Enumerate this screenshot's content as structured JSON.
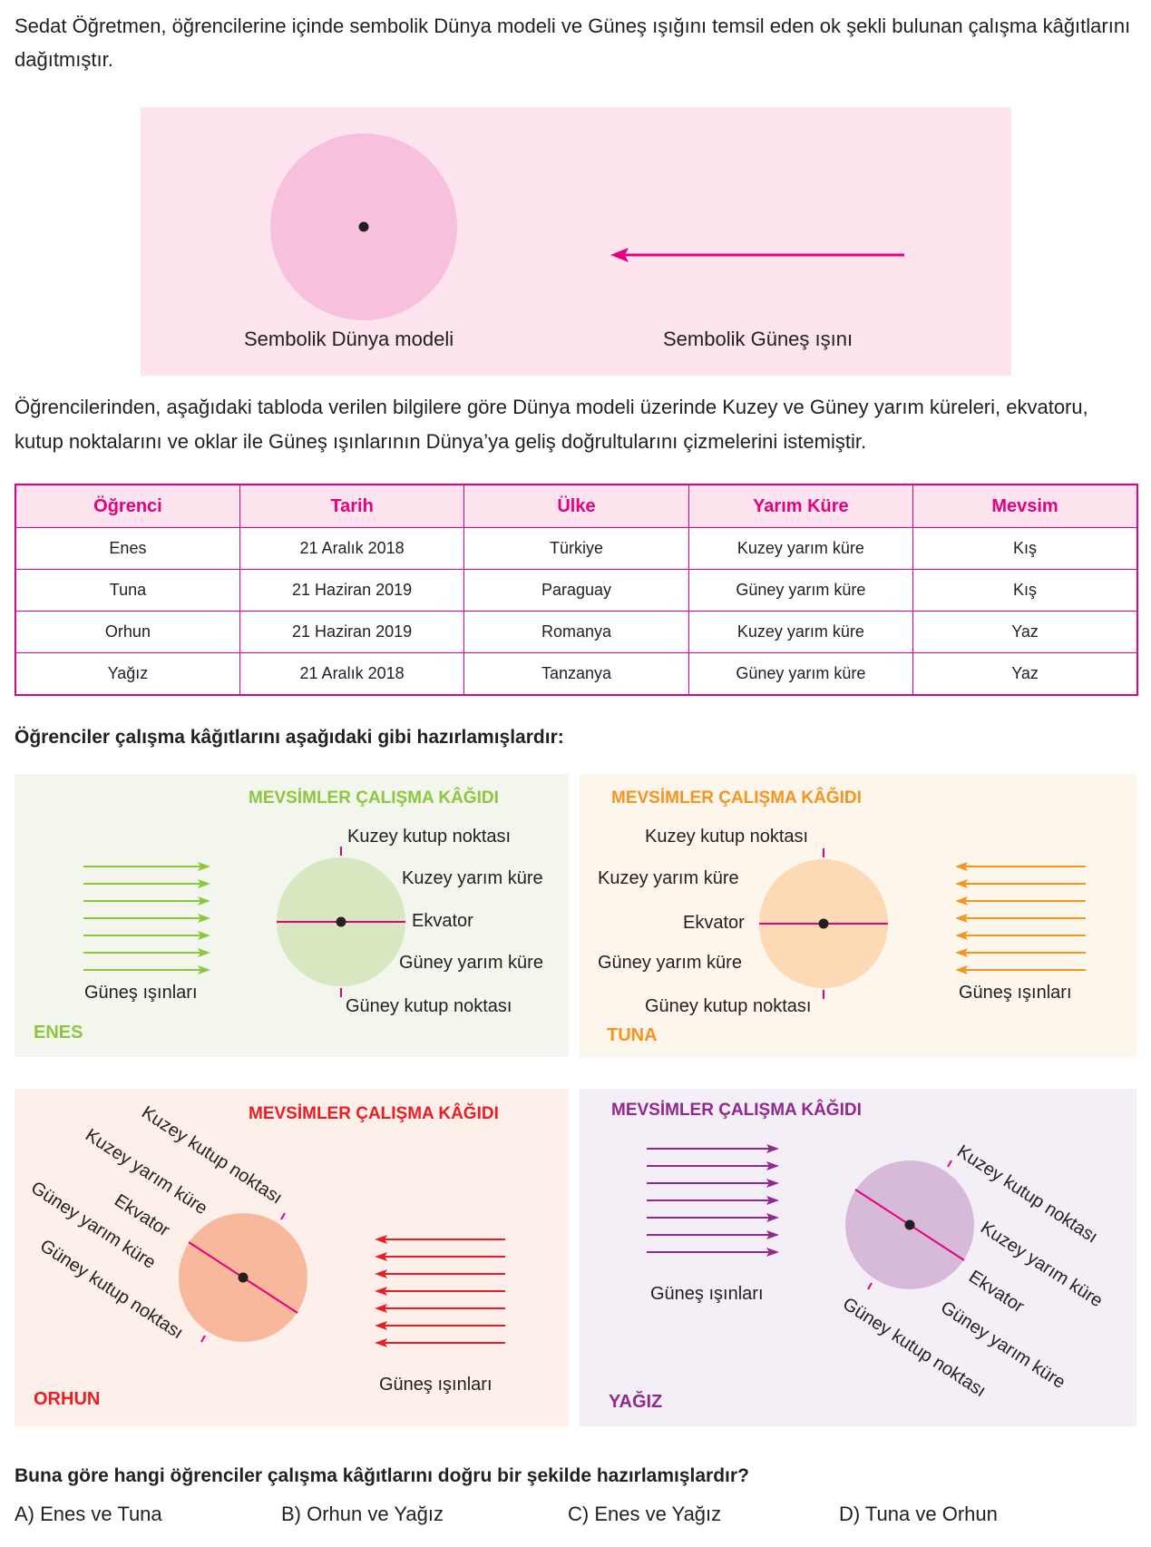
{
  "intro_text": "Sedat Öğretmen, öğrencilerine içinde sembolik Dünya modeli ve Güneş ışığını temsil eden ok şekli bulunan çalışma kâğıtlarını dağıtmıştır.",
  "model": {
    "earth_caption": "Sembolik Dünya modeli",
    "ray_caption": "Sembolik Güneş ışını"
  },
  "instruction_text": "Öğrencilerinden, aşağıdaki tabloda verilen bilgilere göre Dünya modeli üzerinde Kuzey ve Güney yarım küreleri, ekvatoru, kutup noktalarını ve oklar ile Güneş ışınlarının Dünya’ya geliş doğrultularını çizmelerini istemiştir.",
  "table": {
    "headers": [
      "Öğrenci",
      "Tarih",
      "Ülke",
      "Yarım Küre",
      "Mevsim"
    ],
    "rows": [
      [
        "Enes",
        "21 Aralık 2018",
        "Türkiye",
        "Kuzey yarım küre",
        "Kış"
      ],
      [
        "Tuna",
        "21 Haziran 2019",
        "Paraguay",
        "Güney yarım küre",
        "Kış"
      ],
      [
        "Orhun",
        "21 Haziran 2019",
        "Romanya",
        "Kuzey yarım küre",
        "Yaz"
      ],
      [
        "Yağız",
        "21 Aralık 2018",
        "Tanzanya",
        "Güney yarım küre",
        "Yaz"
      ]
    ]
  },
  "worksheets_heading": "Öğrenciler çalışma kâğıtlarını aşağıdaki gibi hazırlamışlardır:",
  "panels": {
    "enes": {
      "title": "MEVSİMLER ÇALIŞMA KÂĞIDI",
      "student": "ENES",
      "north_pole": "Kuzey kutup noktası",
      "north_hemisphere": "Kuzey yarım küre",
      "equator": "Ekvator",
      "south_hemisphere": "Güney yarım küre",
      "south_pole": "Güney kutup noktası",
      "rays": "Güneş ışınları",
      "bg": "#f3f6ed",
      "accent": "#8dc63f",
      "globe": "#d7e8c0"
    },
    "tuna": {
      "title": "MEVSİMLER ÇALIŞMA KÂĞIDI",
      "student": "TUNA",
      "north_pole": "Kuzey kutup noktası",
      "north_hemisphere": "Kuzey yarım küre",
      "equator": "Ekvator",
      "south_hemisphere": "Güney yarım küre",
      "south_pole": "Güney kutup noktası",
      "rays": "Güneş ışınları",
      "bg": "#fdf6ec",
      "accent": "#f7941d",
      "globe": "#fdd9b5"
    },
    "orhun": {
      "title": "MEVSİMLER ÇALIŞMA KÂĞIDI",
      "student": "ORHUN",
      "north_pole": "Kuzey kutup noktası",
      "north_hemisphere": "Kuzey yarım küre",
      "equator": "Ekvator",
      "south_hemisphere": "Güney yarım küre",
      "south_pole": "Güney kutup noktası",
      "rays": "Güneş ışınları",
      "bg": "#fdf0ea",
      "accent": "#ed1c24",
      "globe": "#f8b89b"
    },
    "yagiz": {
      "title": "MEVSİMLER ÇALIŞMA KÂĞIDI",
      "student": "YAĞIZ",
      "north_pole": "Kuzey kutup noktası",
      "north_hemisphere": "Kuzey yarım küre",
      "equator": "Ekvator",
      "south_hemisphere": "Güney yarım küre",
      "south_pole": "Güney kutup noktası",
      "rays": "Güneş ışınları",
      "bg": "#f4eff6",
      "accent": "#92278f",
      "globe": "#d7b9da"
    }
  },
  "question": "Buna göre hangi öğrenciler çalışma kâğıtlarını doğru bir şekilde hazırlamışlardır?",
  "options": [
    "A) Enes ve Tuna",
    "B) Orhun ve Yağız",
    "C) Enes ve Yağız",
    "D) Tuna ve Orhun"
  ],
  "colors": {
    "magenta": "#e6007e",
    "table_header_bg": "#fde4ee",
    "model_bg": "#fde4ee",
    "model_globe": "#f7c0dc"
  }
}
